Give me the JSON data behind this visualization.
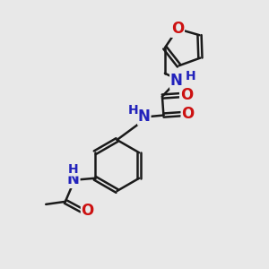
{
  "bg_color": "#e8e8e8",
  "bond_color": "#1a1a1a",
  "nitrogen_color": "#2222bb",
  "oxygen_color": "#cc1111",
  "bond_width": 1.8,
  "font_size_atom": 12,
  "font_size_h": 10,
  "fig_w": 3.0,
  "fig_h": 3.0,
  "dpi": 100,
  "xlim": [
    0,
    10
  ],
  "ylim": [
    0,
    10
  ]
}
